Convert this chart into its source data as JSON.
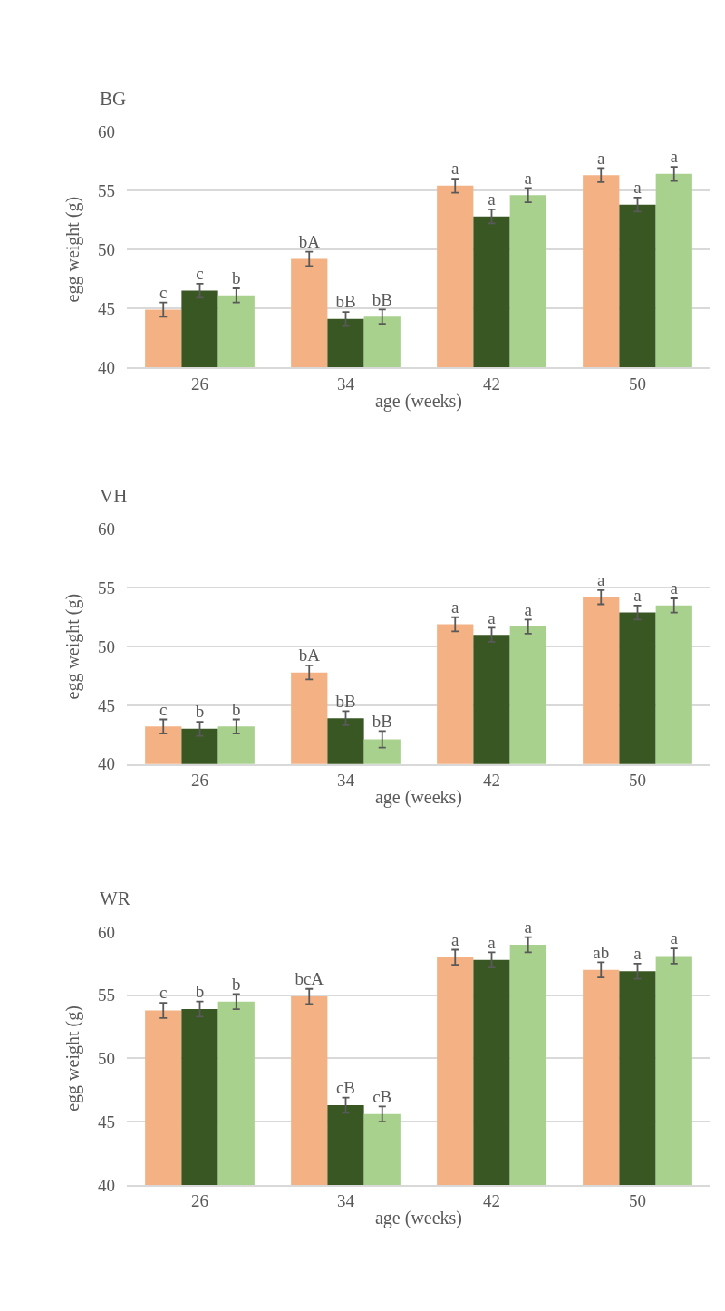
{
  "chart_data": [
    {
      "type": "bar",
      "title": "BG",
      "xlabel": "age (weeks)",
      "ylabel": "egg weight (g)",
      "categories": [
        "26",
        "34",
        "42",
        "50"
      ],
      "ylim": [
        40,
        60
      ],
      "yticks": [
        40,
        45,
        50,
        55,
        60
      ],
      "grid": "y",
      "series": [
        {
          "color": "#f4b183",
          "values": [
            44.9,
            49.2,
            55.4,
            56.3
          ],
          "errors": [
            0.6,
            0.6,
            0.6,
            0.6
          ],
          "value_labels": [
            "c",
            "bA",
            "a",
            "a"
          ]
        },
        {
          "color": "#385723",
          "values": [
            46.5,
            44.1,
            52.8,
            53.8
          ],
          "errors": [
            0.6,
            0.6,
            0.6,
            0.6
          ],
          "value_labels": [
            "c",
            "bB",
            "a",
            "a"
          ]
        },
        {
          "color": "#a9d18e",
          "values": [
            46.1,
            44.3,
            54.6,
            56.4
          ],
          "errors": [
            0.6,
            0.6,
            0.6,
            0.6
          ],
          "value_labels": [
            "b",
            "bB",
            "a",
            "a"
          ]
        }
      ]
    },
    {
      "type": "bar",
      "title": "VH",
      "xlabel": "age (weeks)",
      "ylabel": "egg weight (g)",
      "categories": [
        "26",
        "34",
        "42",
        "50"
      ],
      "ylim": [
        40,
        60
      ],
      "yticks": [
        40,
        45,
        50,
        55,
        60
      ],
      "grid": "y",
      "series": [
        {
          "color": "#f4b183",
          "values": [
            43.2,
            47.8,
            51.9,
            54.2
          ],
          "errors": [
            0.6,
            0.6,
            0.6,
            0.6
          ],
          "value_labels": [
            "c",
            "bA",
            "a",
            "a"
          ]
        },
        {
          "color": "#385723",
          "values": [
            43.0,
            43.9,
            51.0,
            52.9
          ],
          "errors": [
            0.6,
            0.6,
            0.6,
            0.6
          ],
          "value_labels": [
            "b",
            "bB",
            "a",
            "a"
          ]
        },
        {
          "color": "#a9d18e",
          "values": [
            43.2,
            42.1,
            51.7,
            53.5
          ],
          "errors": [
            0.6,
            0.7,
            0.6,
            0.6
          ],
          "value_labels": [
            "b",
            "bB",
            "a",
            "a"
          ]
        }
      ]
    },
    {
      "type": "bar",
      "title": "WR",
      "xlabel": "age (weeks)",
      "ylabel": "egg weight (g)",
      "categories": [
        "26",
        "34",
        "42",
        "50"
      ],
      "ylim": [
        40,
        60
      ],
      "yticks": [
        40,
        45,
        50,
        55,
        60
      ],
      "grid": "y",
      "series": [
        {
          "color": "#f4b183",
          "values": [
            53.8,
            54.9,
            58.0,
            57.0
          ],
          "errors": [
            0.6,
            0.6,
            0.6,
            0.6
          ],
          "value_labels": [
            "c",
            "bcA",
            "a",
            "ab"
          ]
        },
        {
          "color": "#385723",
          "values": [
            53.9,
            46.3,
            57.8,
            56.9
          ],
          "errors": [
            0.6,
            0.6,
            0.6,
            0.6
          ],
          "value_labels": [
            "b",
            "cB",
            "a",
            "a"
          ]
        },
        {
          "color": "#a9d18e",
          "values": [
            54.5,
            45.6,
            59.0,
            58.1
          ],
          "errors": [
            0.6,
            0.6,
            0.6,
            0.6
          ],
          "value_labels": [
            "b",
            "cB",
            "a",
            "a"
          ]
        }
      ]
    }
  ]
}
